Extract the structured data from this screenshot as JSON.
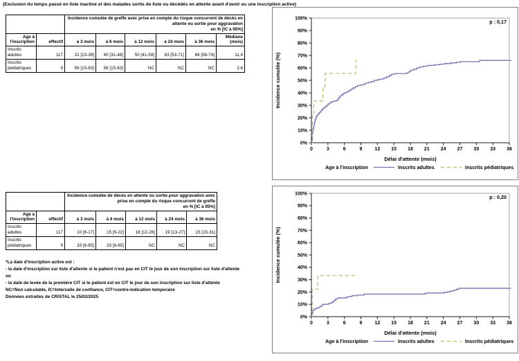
{
  "page_title": "(Exclusion du temps passé en liste inactive et des malades sortis de liste ou décédés en attente avant d'avoir eu une inscription active)",
  "tables": {
    "greffe": {
      "span_header": "Incidence cumulée de greffe avec prise en compte du risque concurrent de décès en\nattente ou sortie pour aggravation\nen % [IC à 95%]",
      "col_headers": [
        "Age à\nl'inscription",
        "effectif",
        "à 3 mois",
        "à 6 mois",
        "à 12 mois",
        "à 24 mois",
        "à 36 mois",
        "Médiane\n(mois)"
      ],
      "rows": [
        {
          "cells": [
            "Inscrits adultes",
            "117",
            "31 [23-39]",
            "40 [31-48]",
            "50 [41-59]",
            "63 [53-71]",
            "66 [56-74]",
            "11,4"
          ]
        },
        {
          "cells": [
            "Inscrits pédiatriques",
            "9",
            "56 [15-83]",
            "56 [15-83]",
            "NC",
            "NC",
            "NC",
            "2,6"
          ]
        }
      ]
    },
    "deces": {
      "span_header": "Incidence cumulée de décès en attente ou sortie pour aggravation avec\nprise en compte du risque concurrent de greffe\nen % [IC à 95%]",
      "col_headers": [
        "Age à\nl'inscription",
        "effectif",
        "à 3 mois",
        "à 6 mois",
        "à 12 mois",
        "à 24 mois",
        "à 36 mois"
      ],
      "rows": [
        {
          "cells": [
            "Inscrits adultes",
            "117",
            "10 [6-17]",
            "15 [9-22]",
            "18 [12-26]",
            "19 [13-27]",
            "23 [15-31]"
          ]
        },
        {
          "cells": [
            "Inscrits pédiatriques",
            "9",
            "33 [6-65]",
            "33 [6-65]",
            "NC",
            "NC",
            "NC"
          ]
        }
      ]
    }
  },
  "footnotes": {
    "lines": [
      "*La date d'inscription active est :",
      "- la date d'inscription sur liste d'attente si le patient n'est pas en CIT le jour de son inscription sur liste d'attente",
      "ou",
      "- la date de levée de la première CIT si le patient est en CIT le jour de son inscription sur liste d'attente",
      "NC=Non calculable, IC=Intervalle de confiance, CIT=contre-indication temporaire",
      "Données extraites de CRISTAL le 25/02/2025"
    ]
  },
  "chart_data": [
    {
      "type": "line",
      "subtype": "step",
      "p_label": "p : 0,17",
      "xlabel": "Délai d'attente (mois)",
      "ylabel": "Incidence cumulée (%)",
      "xlim": [
        0,
        36
      ],
      "ylim": [
        0,
        100
      ],
      "xticks": [
        0,
        3,
        6,
        9,
        12,
        15,
        18,
        21,
        24,
        27,
        30,
        33,
        36
      ],
      "yticks": [
        0,
        10,
        20,
        30,
        40,
        50,
        60,
        70,
        80,
        90,
        100
      ],
      "ytick_suffix": "%",
      "grid": false,
      "legend_title": "Age à l'inscription",
      "legend_position": "bottom",
      "series": [
        {
          "name": "Inscrits adultes",
          "color": "#7474b2",
          "style": "solid",
          "points": [
            [
              0,
              0
            ],
            [
              0.1,
              2
            ],
            [
              0.15,
              5
            ],
            [
              0.2,
              8
            ],
            [
              0.3,
              11
            ],
            [
              0.4,
              13
            ],
            [
              0.5,
              15
            ],
            [
              0.6,
              17
            ],
            [
              0.7,
              19
            ],
            [
              0.85,
              21
            ],
            [
              1.0,
              22
            ],
            [
              1.2,
              23
            ],
            [
              1.4,
              24
            ],
            [
              1.6,
              25
            ],
            [
              1.8,
              26
            ],
            [
              2.0,
              27
            ],
            [
              2.2,
              28
            ],
            [
              2.5,
              29
            ],
            [
              2.8,
              30
            ],
            [
              3.0,
              31
            ],
            [
              3.3,
              31.9
            ],
            [
              3.6,
              32.8
            ],
            [
              4.0,
              33.3
            ],
            [
              4.5,
              33.8
            ],
            [
              4.8,
              35
            ],
            [
              5.0,
              36.2
            ],
            [
              5.2,
              37.5
            ],
            [
              5.5,
              38.5
            ],
            [
              5.8,
              39.4
            ],
            [
              6.0,
              40
            ],
            [
              6.3,
              40.5
            ],
            [
              6.6,
              41.2
            ],
            [
              6.9,
              42
            ],
            [
              7.2,
              43
            ],
            [
              7.6,
              44
            ],
            [
              8.0,
              45
            ],
            [
              8.4,
              45.9
            ],
            [
              9.0,
              46.4
            ],
            [
              9.5,
              47
            ],
            [
              9.9,
              47.9
            ],
            [
              10.4,
              48.4
            ],
            [
              10.9,
              49
            ],
            [
              11.4,
              50
            ],
            [
              12.0,
              50.6
            ],
            [
              12.6,
              51.1
            ],
            [
              13.2,
              52
            ],
            [
              13.7,
              53
            ],
            [
              14.2,
              54
            ],
            [
              14.6,
              55
            ],
            [
              15.2,
              55.5
            ],
            [
              17.4,
              56.2
            ],
            [
              17.8,
              57.3
            ],
            [
              18.1,
              58.2
            ],
            [
              18.6,
              59
            ],
            [
              19.2,
              60
            ],
            [
              19.7,
              60.8
            ],
            [
              20.4,
              61.4
            ],
            [
              21.2,
              62
            ],
            [
              22.3,
              62.5
            ],
            [
              23.3,
              63
            ],
            [
              24.2,
              63.5
            ],
            [
              25.3,
              64
            ],
            [
              26.4,
              64.5
            ],
            [
              27.1,
              65
            ],
            [
              30.6,
              66
            ],
            [
              36.3,
              66.3
            ]
          ]
        },
        {
          "name": "Inscrits pédiatriques",
          "color": "#b7cb80",
          "style": "dashed",
          "points": [
            [
              0,
              0
            ],
            [
              0.2,
              22.3
            ],
            [
              0.45,
              33.5
            ],
            [
              2.1,
              44.8
            ],
            [
              2.5,
              55.6
            ],
            [
              8.1,
              66.8
            ]
          ]
        }
      ]
    },
    {
      "type": "line",
      "subtype": "step",
      "p_label": "p : 0,20",
      "xlabel": "Délai d'attente (mois)",
      "ylabel": "Incidence cumulée (%)",
      "xlim": [
        0,
        36
      ],
      "ylim": [
        0,
        100
      ],
      "xticks": [
        0,
        3,
        6,
        9,
        12,
        15,
        18,
        21,
        24,
        27,
        30,
        33,
        36
      ],
      "yticks": [
        0,
        10,
        20,
        30,
        40,
        50,
        60,
        70,
        80,
        90,
        100
      ],
      "ytick_suffix": "%",
      "grid": false,
      "legend_title": "Age à l'inscription",
      "legend_position": "bottom",
      "series": [
        {
          "name": "Inscrits adultes",
          "color": "#7474b2",
          "style": "solid",
          "points": [
            [
              0,
              0
            ],
            [
              0.15,
              3
            ],
            [
              0.25,
              5
            ],
            [
              0.5,
              6.3
            ],
            [
              0.9,
              7
            ],
            [
              1.3,
              7.6
            ],
            [
              1.6,
              8.3
            ],
            [
              1.9,
              9.2
            ],
            [
              2.1,
              10
            ],
            [
              3.1,
              10.6
            ],
            [
              3.5,
              11.2
            ],
            [
              3.8,
              12
            ],
            [
              4.1,
              13.2
            ],
            [
              4.4,
              14.4
            ],
            [
              4.8,
              15.2
            ],
            [
              6.4,
              16
            ],
            [
              6.9,
              16.4
            ],
            [
              7.4,
              17
            ],
            [
              8.4,
              17.5
            ],
            [
              9.6,
              18.3
            ],
            [
              20.6,
              18.8
            ],
            [
              21.0,
              19.2
            ],
            [
              24.2,
              19.7
            ],
            [
              24.8,
              20.2
            ],
            [
              25.3,
              20.8
            ],
            [
              25.9,
              21.5
            ],
            [
              26.4,
              22.3
            ],
            [
              26.9,
              23
            ],
            [
              36.3,
              23
            ]
          ]
        },
        {
          "name": "Inscrits pédiatriques",
          "color": "#b7cb80",
          "style": "dashed",
          "points": [
            [
              0,
              0
            ],
            [
              0.15,
              22.3
            ],
            [
              1.15,
              33.4
            ],
            [
              7.9,
              33.4
            ]
          ]
        }
      ]
    }
  ],
  "colors": {
    "adult_line": "#7474b2",
    "pediatric_line": "#b7cb80",
    "axis": "#1a1a1a",
    "plot_frame": "#8a8a8a",
    "chart_border": "#7f7f7f"
  }
}
